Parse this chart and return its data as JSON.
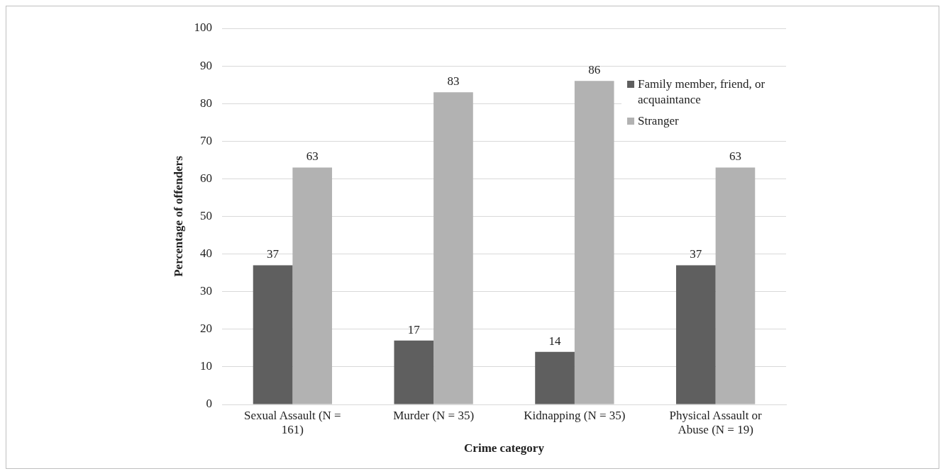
{
  "chart_data": {
    "type": "bar",
    "xlabel": "Crime category",
    "ylabel": "Percentage of offenders",
    "categories": [
      "Sexual Assault (N = 161)",
      "Murder (N = 35)",
      "Kidnapping (N = 35)",
      "Physical Assault or Abuse (N = 19)"
    ],
    "series": [
      {
        "name": "Family member, friend, or acquaintance",
        "color": "#5f5f5f",
        "values": [
          37,
          17,
          14,
          37
        ]
      },
      {
        "name": "Stranger",
        "color": "#b2b2b2",
        "values": [
          63,
          83,
          86,
          63
        ]
      }
    ],
    "ylim": [
      0,
      100
    ],
    "yticks": [
      0,
      10,
      20,
      30,
      40,
      50,
      60,
      70,
      80,
      90,
      100
    ],
    "grid": "y",
    "legend": "top right",
    "data_labels": true
  }
}
